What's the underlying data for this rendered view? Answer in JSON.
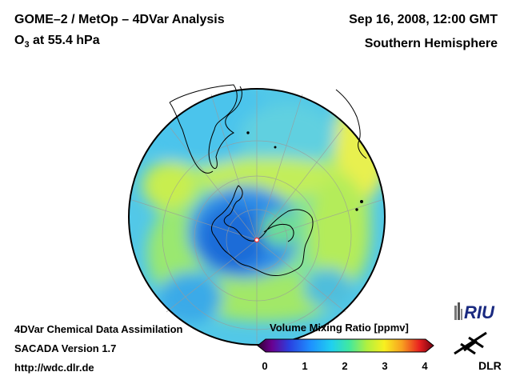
{
  "header": {
    "title_line1": "GOME–2 / MetOp – 4DVar Analysis",
    "title_line2_prefix": "O",
    "title_line2_sub": "3",
    "title_line2_suffix": " at 55.4 hPa",
    "date": "Sep 16, 2008, 12:00 GMT",
    "region": "Southern Hemisphere"
  },
  "footer": {
    "line1": "4DVar Chemical Data Assimilation",
    "line2": "SACADA Version 1.7",
    "line3": "http://wdc.dlr.de"
  },
  "colorbar": {
    "title": "Volume Mixing Ratio [ppmv]",
    "ticks": [
      "0",
      "1",
      "2",
      "3",
      "4"
    ],
    "colors": [
      "#200020",
      "#5a0070",
      "#2020d0",
      "#1e88ff",
      "#20c8f0",
      "#40e8a0",
      "#a8f040",
      "#f8f020",
      "#f8a020",
      "#e82020",
      "#8a0010"
    ]
  },
  "logos": {
    "riu": "RIU",
    "dlr": "DLR"
  }
}
